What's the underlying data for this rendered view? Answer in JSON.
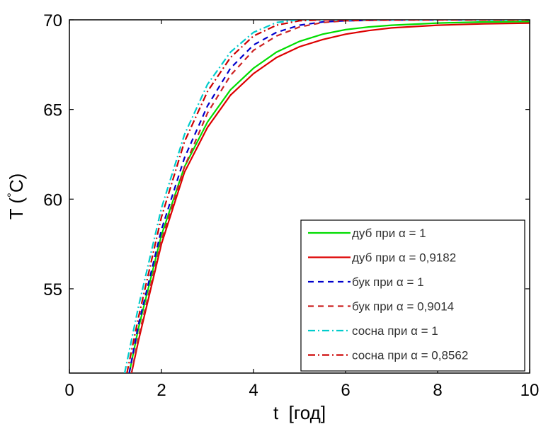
{
  "chart_data": {
    "type": "line",
    "xlabel": "t  [год]",
    "ylabel": "T (°C)",
    "xlim": [
      0,
      10
    ],
    "ylim": [
      50.3,
      70
    ],
    "x_ticks": [
      0,
      2,
      4,
      6,
      8,
      10
    ],
    "y_ticks": [
      55,
      60,
      65,
      70
    ],
    "legend_position": "bottom-right",
    "grid": false,
    "series": [
      {
        "name": "дуб при α = 1",
        "color": "#00dd00",
        "dash": "solid",
        "x": [
          1.3,
          1.5,
          2,
          2.5,
          3,
          3.5,
          4,
          4.5,
          5,
          5.5,
          6,
          6.5,
          7,
          8,
          9,
          10
        ],
        "y": [
          50.3,
          52.8,
          58.0,
          61.8,
          64.3,
          66.1,
          67.3,
          68.2,
          68.8,
          69.2,
          69.45,
          69.6,
          69.7,
          69.82,
          69.88,
          69.9
        ]
      },
      {
        "name": "дуб при α = 0,9182",
        "color": "#dd0000",
        "dash": "solid",
        "x": [
          1.35,
          1.5,
          2,
          2.5,
          3,
          3.5,
          4,
          4.5,
          5,
          5.5,
          6,
          6.5,
          7,
          8,
          9,
          10
        ],
        "y": [
          50.3,
          52.1,
          57.5,
          61.5,
          64.0,
          65.8,
          67.0,
          67.9,
          68.5,
          68.9,
          69.2,
          69.4,
          69.55,
          69.7,
          69.78,
          69.82
        ]
      },
      {
        "name": "бук при α = 1",
        "color": "#0000cc",
        "dash": "8,6",
        "x": [
          1.3,
          1.5,
          2,
          2.5,
          3,
          3.5,
          4,
          4.5,
          5,
          5.5,
          6,
          7,
          8,
          9,
          10
        ],
        "y": [
          50.3,
          53.0,
          58.3,
          62.3,
          65.2,
          67.3,
          68.6,
          69.3,
          69.7,
          69.88,
          69.95,
          69.99,
          70,
          70,
          70
        ]
      },
      {
        "name": "бук при α = 0,9014",
        "color": "#cc2222",
        "dash": "8,6",
        "x": [
          1.35,
          1.5,
          2,
          2.5,
          3,
          3.5,
          4,
          4.5,
          5,
          5.5,
          6,
          7,
          8,
          9,
          10
        ],
        "y": [
          50.3,
          52.3,
          57.7,
          61.8,
          64.8,
          66.9,
          68.3,
          69.1,
          69.6,
          69.85,
          69.95,
          69.99,
          70,
          70,
          70
        ]
      },
      {
        "name": "сосна при α = 1",
        "color": "#00cccc",
        "dash": "10,4,2,4",
        "x": [
          1.2,
          1.5,
          2,
          2.5,
          3,
          3.5,
          4,
          4.5,
          5,
          5.5,
          6,
          7,
          8,
          9,
          10
        ],
        "y": [
          50.3,
          54.0,
          59.5,
          63.6,
          66.4,
          68.2,
          69.3,
          69.85,
          70,
          70,
          70,
          70,
          70,
          70,
          70
        ]
      },
      {
        "name": "сосна при α = 0,8562",
        "color": "#cc0000",
        "dash": "10,4,2,4",
        "x": [
          1.25,
          1.5,
          2,
          2.5,
          3,
          3.5,
          4,
          4.5,
          5,
          5.5,
          6,
          7,
          8,
          9,
          10
        ],
        "y": [
          50.3,
          53.4,
          59.0,
          63.2,
          66.0,
          67.9,
          69.1,
          69.7,
          69.95,
          70,
          70,
          70,
          70,
          70,
          70
        ]
      }
    ]
  }
}
